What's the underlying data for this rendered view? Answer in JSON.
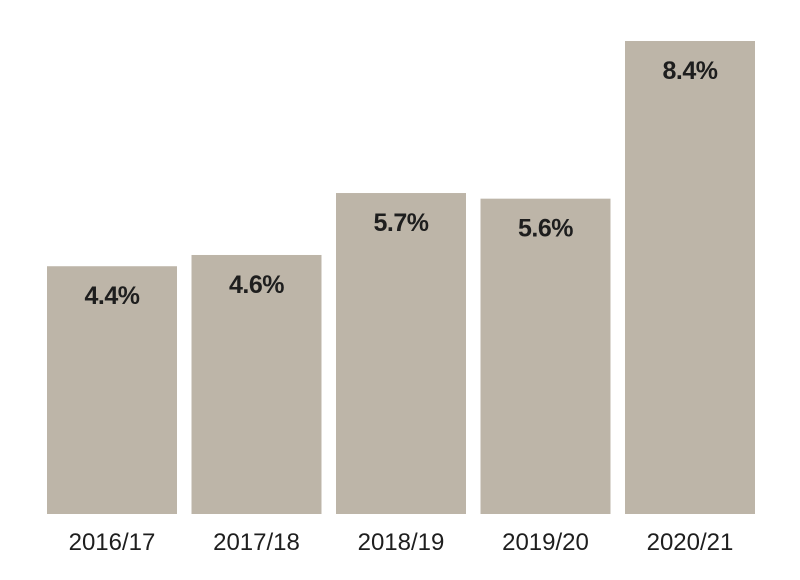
{
  "chart_data": {
    "type": "bar",
    "categories": [
      "2016/17",
      "2017/18",
      "2018/19",
      "2019/20",
      "2020/21"
    ],
    "values": [
      4.4,
      4.6,
      5.7,
      5.6,
      8.4
    ],
    "value_labels": [
      "4.4%",
      "4.6%",
      "5.7%",
      "5.6%",
      "8.4%"
    ],
    "unit": "%",
    "title": "",
    "xlabel": "",
    "ylabel": "",
    "ylim": [
      0,
      8.4
    ],
    "grid": false,
    "colors": {
      "bar": "#bdb5a8",
      "text": "#1e1e1e",
      "background": "#ffffff"
    }
  }
}
